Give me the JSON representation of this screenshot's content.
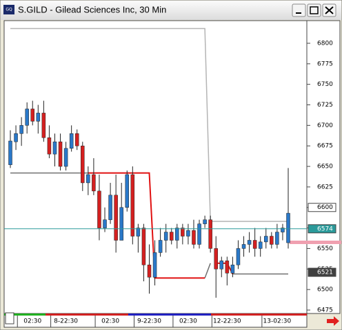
{
  "chart_data": {
    "type": "candlestick",
    "title": "S.GILD - Gilead Sciences Inc, 30 Min",
    "categories": [
      null,
      null,
      null,
      null,
      "02:30",
      null,
      null,
      null,
      null,
      null,
      "8-22:30",
      null,
      null,
      null,
      null,
      null,
      null,
      null,
      "02:30",
      null,
      null,
      null,
      null,
      null,
      null,
      "9-22:30",
      null,
      null,
      null,
      null,
      null,
      null,
      "02:30",
      null,
      null,
      null,
      null,
      null,
      null,
      "12-22:30",
      null,
      null,
      null,
      null,
      null,
      null,
      null,
      null,
      "13-02:30",
      null,
      null
    ],
    "open": [
      6652,
      6680,
      6690,
      6700,
      6720,
      6705,
      6715,
      6685,
      6665,
      6680,
      6650,
      6672,
      6690,
      6675,
      6630,
      6640,
      6620,
      6575,
      6585,
      6615,
      6560,
      6600,
      6640,
      6565,
      6575,
      6530,
      6515,
      6545,
      6560,
      6570,
      6560,
      6575,
      6565,
      6572,
      6555,
      6580,
      6585,
      6550,
      6525,
      6535,
      6520,
      6530,
      6550,
      6555,
      6560,
      6550,
      6558,
      6565,
      6555,
      6570,
      6557
    ],
    "high": [
      6694,
      6700,
      6710,
      6728,
      6730,
      6725,
      6730,
      6700,
      6690,
      6690,
      6680,
      6700,
      6695,
      6680,
      6650,
      6660,
      6640,
      6600,
      6630,
      6640,
      6630,
      6645,
      6650,
      6580,
      6580,
      6555,
      6560,
      6575,
      6580,
      6575,
      6580,
      6580,
      6580,
      6585,
      6585,
      6590,
      6590,
      6565,
      6540,
      6540,
      6540,
      6560,
      6565,
      6570,
      6575,
      6565,
      6575,
      6570,
      6580,
      6580,
      6648
    ],
    "low": [
      6648,
      6670,
      6675,
      6690,
      6700,
      6690,
      6680,
      6660,
      6650,
      6645,
      6645,
      6668,
      6670,
      6620,
      6615,
      6615,
      6560,
      6570,
      6580,
      6545,
      6560,
      6595,
      6555,
      6545,
      6510,
      6495,
      6505,
      6540,
      6545,
      6555,
      6550,
      6555,
      6555,
      6550,
      6550,
      6575,
      6545,
      6490,
      6515,
      6505,
      6515,
      6525,
      6540,
      6545,
      6540,
      6540,
      6550,
      6550,
      6550,
      6560,
      6550
    ],
    "close": [
      6681,
      6690,
      6700,
      6720,
      6705,
      6715,
      6685,
      6665,
      6680,
      6650,
      6672,
      6690,
      6675,
      6630,
      6640,
      6620,
      6575,
      6585,
      6615,
      6560,
      6600,
      6640,
      6565,
      6575,
      6530,
      6515,
      6545,
      6560,
      6570,
      6560,
      6575,
      6565,
      6572,
      6555,
      6580,
      6585,
      6550,
      6525,
      6535,
      6520,
      6530,
      6550,
      6555,
      6560,
      6550,
      6558,
      6565,
      6555,
      6570,
      6575,
      6593
    ],
    "up_color": "#2a78c8",
    "down_color": "#d42020",
    "lines": [
      {
        "color": "#b4b4b4",
        "values": [
          6818,
          6818,
          6818,
          6818,
          6818,
          6818,
          6818,
          6818,
          6818,
          6818,
          6818,
          6818,
          6818,
          6818,
          6818,
          6818,
          6818,
          6818,
          6818,
          6818,
          6818,
          6818,
          6818,
          6818,
          6818,
          6818,
          6818,
          6818,
          6818,
          6818,
          6818,
          6818,
          6818,
          6818,
          6818,
          6818,
          6583,
          6583,
          6583,
          6583,
          6583,
          6583,
          6583,
          6583,
          6583,
          6583,
          6583,
          6583,
          6583,
          6583,
          6583
        ]
      },
      {
        "color": "#707070",
        "values": [
          6642,
          6642,
          6642,
          6642,
          6642,
          6642,
          6642,
          6642,
          6642,
          6642,
          6642,
          6642,
          6642,
          6642,
          6642,
          null,
          null,
          null,
          null,
          null,
          null,
          null,
          null,
          null,
          null,
          null,
          null,
          null,
          null,
          null,
          null,
          null,
          null,
          null,
          null,
          6514,
          6532,
          null,
          null,
          null,
          6519,
          6519,
          6519,
          6519,
          6519,
          6519,
          6519,
          6519,
          6519,
          6519,
          6519
        ]
      },
      {
        "color": "#e01010",
        "values": [
          null,
          null,
          null,
          null,
          null,
          null,
          null,
          null,
          null,
          null,
          null,
          null,
          null,
          null,
          6642,
          6642,
          6642,
          6642,
          6642,
          6642,
          6642,
          6642,
          6642,
          6642,
          6642,
          6642,
          6514,
          6514,
          6514,
          6514,
          6514,
          6514,
          6514,
          6514,
          6514,
          6514,
          null,
          6532,
          6532,
          6532,
          6519,
          null,
          null,
          null,
          null,
          null,
          null,
          null,
          null,
          null,
          null
        ]
      }
    ],
    "price_markers": [
      {
        "value": 6600,
        "color": "#ffffff",
        "line": false
      },
      {
        "value": 6574,
        "color": "#2a9a9a",
        "line": true
      },
      {
        "value": 6521,
        "color": "#404040",
        "line": false
      }
    ],
    "ylim": [
      6470.8,
      6827.6
    ],
    "yticks": [
      6475,
      6500,
      6525,
      6550,
      6575,
      6600,
      6625,
      6650,
      6675,
      6700,
      6725,
      6750,
      6775,
      6800
    ]
  }
}
